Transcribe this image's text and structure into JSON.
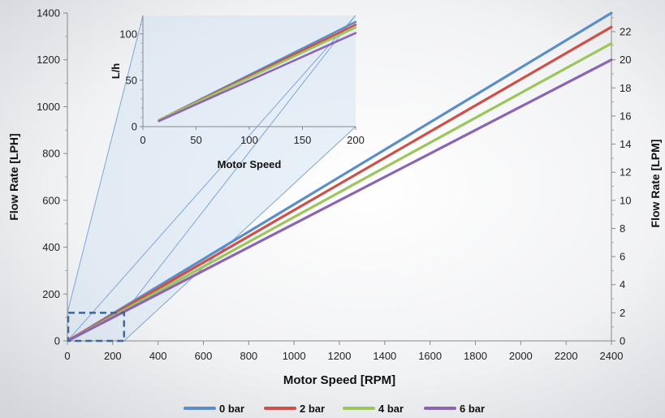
{
  "chart_data": [
    {
      "type": "line",
      "title": "",
      "xlabel": "Motor Speed [RPM]",
      "ylabel": "Flow Rate [LPH]",
      "y2label": "Flow Rate [LPM]",
      "xlim": [
        0,
        2400
      ],
      "ylim": [
        0,
        1400
      ],
      "y2lim": [
        0,
        23.33
      ],
      "x_ticks": [
        "0",
        "200",
        "400",
        "600",
        "800",
        "1000",
        "1200",
        "1400",
        "1600",
        "1800",
        "2000",
        "2200",
        "2400"
      ],
      "y_ticks": [
        "0",
        "200",
        "400",
        "600",
        "800",
        "1000",
        "1200",
        "1400"
      ],
      "y2_ticks": [
        "0",
        "2",
        "4",
        "6",
        "8",
        "10",
        "12",
        "14",
        "16",
        "18",
        "20",
        "22"
      ],
      "grid": false,
      "legend_position": "bottom",
      "series": [
        {
          "name": "0 bar",
          "color": "#5b8ec9",
          "x": [
            15,
            2400
          ],
          "y": [
            8,
            1400
          ]
        },
        {
          "name": "2 bar",
          "color": "#cf504a",
          "x": [
            15,
            2400
          ],
          "y": [
            8,
            1340
          ]
        },
        {
          "name": "4 bar",
          "color": "#9bc659",
          "x": [
            15,
            2400
          ],
          "y": [
            7,
            1270
          ]
        },
        {
          "name": "6 bar",
          "color": "#8c64b4",
          "x": [
            15,
            2400
          ],
          "y": [
            7,
            1200
          ]
        }
      ],
      "highlight_region": {
        "x": [
          0,
          250
        ],
        "y": [
          0,
          120
        ]
      }
    },
    {
      "type": "line",
      "title": "",
      "xlabel": "Motor Speed",
      "ylabel": "L/h",
      "xlim": [
        0,
        200
      ],
      "ylim": [
        0,
        120
      ],
      "x_ticks": [
        "0",
        "50",
        "100",
        "150",
        "200"
      ],
      "y_ticks": [
        "0",
        "50",
        "100"
      ],
      "grid": false,
      "series": [
        {
          "name": "0 bar",
          "color": "#5b8ec9",
          "x": [
            15,
            200
          ],
          "y": [
            7,
            113
          ]
        },
        {
          "name": "2 bar",
          "color": "#cf504a",
          "x": [
            15,
            200
          ],
          "y": [
            7,
            110
          ]
        },
        {
          "name": "4 bar",
          "color": "#9bc659",
          "x": [
            15,
            200
          ],
          "y": [
            7,
            107
          ]
        },
        {
          "name": "6 bar",
          "color": "#8c64b4",
          "x": [
            15,
            200
          ],
          "y": [
            6,
            101
          ]
        }
      ]
    }
  ],
  "legend": {
    "items": [
      {
        "label": "0 bar",
        "color": "#5b8ec9"
      },
      {
        "label": "2 bar",
        "color": "#cf504a"
      },
      {
        "label": "4 bar",
        "color": "#9bc659"
      },
      {
        "label": "6 bar",
        "color": "#8c64b4"
      }
    ]
  }
}
